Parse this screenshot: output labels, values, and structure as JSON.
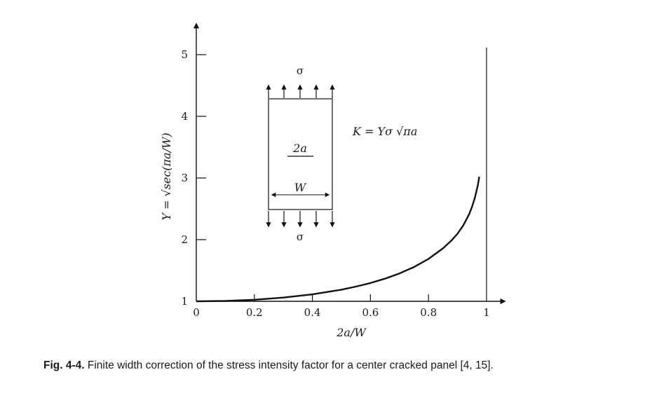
{
  "chart_data": {
    "type": "line",
    "xlabel": "2a/W",
    "ylabel": "Y = √sec(πa/W)",
    "xlim": [
      0,
      1
    ],
    "ylim": [
      1,
      5
    ],
    "x_ticks": [
      "0",
      "0.2",
      "0.4",
      "0.6",
      "0.8",
      "1"
    ],
    "y_ticks": [
      "1",
      "2",
      "3",
      "4",
      "5"
    ],
    "grid": false,
    "legend": "none",
    "series": [
      {
        "x": [
          0,
          0.1,
          0.2,
          0.3,
          0.4,
          0.5,
          0.55,
          0.6,
          0.65,
          0.7,
          0.75,
          0.8,
          0.85,
          0.88,
          0.9,
          0.92,
          0.94,
          0.95,
          0.96,
          0.97,
          0.975
        ],
        "y": [
          1.0,
          1.006,
          1.025,
          1.06,
          1.113,
          1.189,
          1.239,
          1.297,
          1.367,
          1.452,
          1.556,
          1.687,
          1.859,
          1.99,
          2.097,
          2.232,
          2.414,
          2.532,
          2.682,
          2.883,
          3.02
        ],
        "color": "#111111"
      }
    ],
    "annotations": {
      "formula": "K = Yσ √πa",
      "sigma_top": "σ",
      "sigma_bottom": "σ",
      "crack_label": "2a",
      "width_label": "W",
      "vertical_asymptote_x": 1
    }
  },
  "caption": {
    "label": "Fig. 4-4.",
    "text": "Finite width correction of the stress intensity factor for a center cracked panel [4, 15]."
  }
}
